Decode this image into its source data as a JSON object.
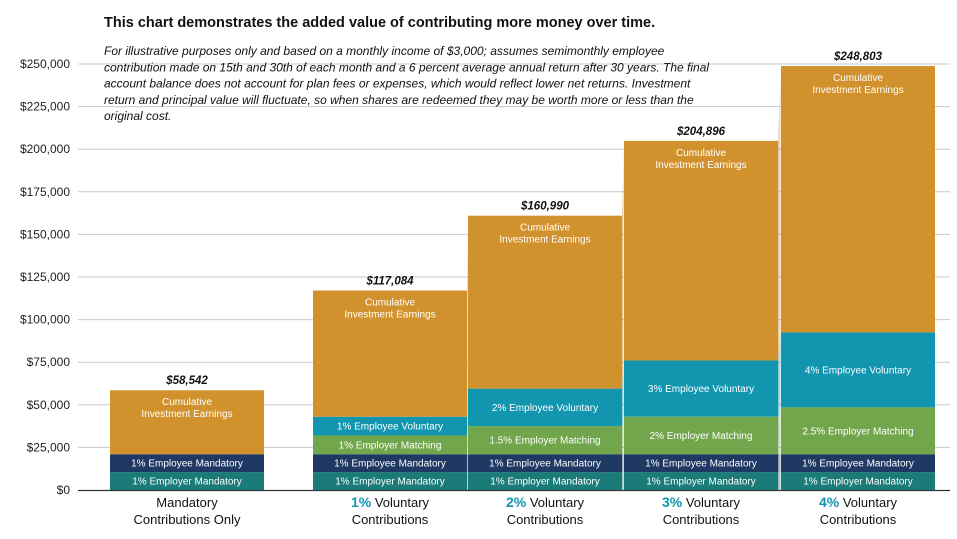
{
  "chart_data": {
    "type": "bar",
    "stacked": true,
    "title": "This chart demonstrates the added value of contributing more money over time.",
    "subtitle_lines": [
      "For illustrative purposes only and based on a monthly income of $3,000; assumes semimonthly employee",
      "contribution made on 15th and 30th of each month and a 6 percent average annual return after 30 years. The final",
      "account balance does not account for plan fees or expenses, which would reflect lower net returns. Investment",
      "return and principal value will fluctuate, so when shares are redeemed they may be worth more or less than the",
      "original cost."
    ],
    "ylim": [
      0,
      250000
    ],
    "yticks": [
      0,
      25000,
      50000,
      75000,
      100000,
      125000,
      150000,
      175000,
      200000,
      225000,
      250000
    ],
    "ytick_labels": [
      "$0",
      "$25,000",
      "$50,000",
      "$75,000",
      "$100,000",
      "$125,000",
      "$150,000",
      "$175,000",
      "$200,000",
      "$225,000",
      "$250,000"
    ],
    "grid": true,
    "categories": [
      {
        "highlight": "",
        "line1": "Mandatory",
        "line2": "Contributions Only"
      },
      {
        "highlight": "1%",
        "line1": " Voluntary",
        "line2": "Contributions"
      },
      {
        "highlight": "2%",
        "line1": " Voluntary",
        "line2": "Contributions"
      },
      {
        "highlight": "3%",
        "line1": " Voluntary",
        "line2": "Contributions"
      },
      {
        "highlight": "4%",
        "line1": " Voluntary",
        "line2": "Contributions"
      }
    ],
    "totals": [
      "$58,542",
      "$117,084",
      "$160,990",
      "$204,896",
      "$248,803"
    ],
    "total_values": [
      58542,
      117084,
      160990,
      204896,
      248803
    ],
    "stacks": [
      [
        {
          "label": "1% Employer Mandatory",
          "value": 10500,
          "color": "#1a7b78"
        },
        {
          "label": "1% Employee Mandatory",
          "value": 10500,
          "color": "#1f3864"
        },
        {
          "label": "Cumulative|Investment Earnings",
          "value": 37542,
          "color": "#d1922e"
        }
      ],
      [
        {
          "label": "1% Employer Mandatory",
          "value": 10500,
          "color": "#1a7b78"
        },
        {
          "label": "1% Employee Mandatory",
          "value": 10500,
          "color": "#1f3864"
        },
        {
          "label": "1% Employer Matching",
          "value": 11000,
          "color": "#72a64c"
        },
        {
          "label": "1% Employee Voluntary",
          "value": 11000,
          "color": "#1296b0"
        },
        {
          "label": "Cumulative|Investment Earnings",
          "value": 74084,
          "color": "#d1922e"
        }
      ],
      [
        {
          "label": "1% Employer Mandatory",
          "value": 10500,
          "color": "#1a7b78"
        },
        {
          "label": "1% Employee Mandatory",
          "value": 10500,
          "color": "#1f3864"
        },
        {
          "label": "1.5% Employer Matching",
          "value": 16500,
          "color": "#72a64c"
        },
        {
          "label": "2% Employee Voluntary",
          "value": 22000,
          "color": "#1296b0"
        },
        {
          "label": "Cumulative|Investment Earnings",
          "value": 101490,
          "color": "#d1922e"
        }
      ],
      [
        {
          "label": "1% Employer Mandatory",
          "value": 10500,
          "color": "#1a7b78"
        },
        {
          "label": "1% Employee Mandatory",
          "value": 10500,
          "color": "#1f3864"
        },
        {
          "label": "2% Employer Matching",
          "value": 22000,
          "color": "#72a64c"
        },
        {
          "label": "3% Employee Voluntary",
          "value": 33000,
          "color": "#1296b0"
        },
        {
          "label": "Cumulative|Investment Earnings",
          "value": 128896,
          "color": "#d1922e"
        }
      ],
      [
        {
          "label": "1% Employer Mandatory",
          "value": 10500,
          "color": "#1a7b78"
        },
        {
          "label": "1% Employee Mandatory",
          "value": 10500,
          "color": "#1f3864"
        },
        {
          "label": "2.5% Employer Matching",
          "value": 27500,
          "color": "#72a64c"
        },
        {
          "label": "4% Employee Voluntary",
          "value": 44000,
          "color": "#1296b0"
        },
        {
          "label": "Cumulative|Investment Earnings",
          "value": 156303,
          "color": "#d1922e"
        }
      ]
    ],
    "colors": {
      "highlight_text": "#1296b0",
      "grid": "#c8c8c8",
      "axis": "#333333",
      "employer_mandatory": "#1a7b78",
      "employee_mandatory": "#1f3864",
      "employer_matching": "#72a64c",
      "employee_voluntary": "#1296b0",
      "earnings": "#d1922e"
    }
  }
}
